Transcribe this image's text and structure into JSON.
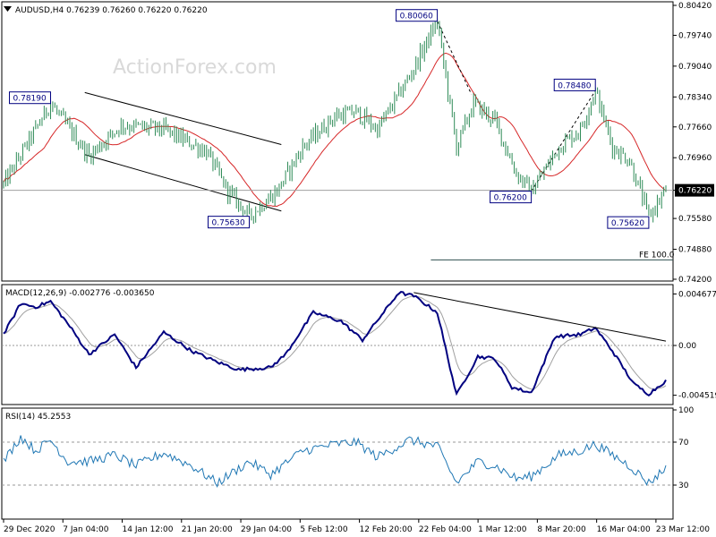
{
  "watermark": "ActionForex.com",
  "colors": {
    "candle": "#2e8b57",
    "ma": "#d62728",
    "macd": "#000080",
    "signal": "#a0a0a0",
    "rsi": "#1f77b4",
    "trendline": "#000000",
    "fe_line": "#2f4f4f",
    "price_line": "#a0a0a0",
    "label_border": "#000080"
  },
  "chart_data": [
    {
      "type": "candlestick",
      "title": "AUDUSD,H4  0.76239 0.76260 0.76220 0.76220",
      "yticks": [
        "0.80420",
        "0.79740",
        "0.79040",
        "0.78340",
        "0.77660",
        "0.76960",
        "0.76220",
        "0.75580",
        "0.74880",
        "0.74200"
      ],
      "ylim": [
        0.742,
        0.8042
      ],
      "current_price": "0.76220",
      "annotations": [
        {
          "text": "0.78190",
          "bar": 22,
          "value": 0.7819
        },
        {
          "text": "0.75630",
          "bar": 115,
          "value": 0.7563
        },
        {
          "text": "0.80060",
          "bar": 203,
          "value": 0.8006
        },
        {
          "text": "0.76200",
          "bar": 247,
          "value": 0.762
        },
        {
          "text": "0.78480",
          "bar": 277,
          "value": 0.7848
        },
        {
          "text": "0.75620",
          "bar": 302,
          "value": 0.7562
        }
      ],
      "fe_label": "FE 100.0",
      "fe_value": 0.7464,
      "bars": 310,
      "anchors": [
        [
          0,
          0.7635
        ],
        [
          22,
          0.7819
        ],
        [
          40,
          0.77
        ],
        [
          55,
          0.777
        ],
        [
          75,
          0.776
        ],
        [
          95,
          0.771
        ],
        [
          105,
          0.762
        ],
        [
          115,
          0.7563
        ],
        [
          128,
          0.762
        ],
        [
          140,
          0.772
        ],
        [
          155,
          0.779
        ],
        [
          165,
          0.78
        ],
        [
          175,
          0.776
        ],
        [
          190,
          0.788
        ],
        [
          203,
          0.8006
        ],
        [
          212,
          0.772
        ],
        [
          220,
          0.782
        ],
        [
          230,
          0.778
        ],
        [
          240,
          0.766
        ],
        [
          247,
          0.762
        ],
        [
          260,
          0.772
        ],
        [
          270,
          0.776
        ],
        [
          277,
          0.7848
        ],
        [
          285,
          0.772
        ],
        [
          293,
          0.769
        ],
        [
          302,
          0.7562
        ],
        [
          310,
          0.7622
        ]
      ],
      "channels": [
        {
          "from": [
            38,
            0.7844
          ],
          "to": [
            130,
            0.7726
          ]
        },
        {
          "from": [
            38,
            0.7703
          ],
          "to": [
            130,
            0.7575
          ]
        }
      ],
      "zigzag": [
        [
          203,
          0.8006
        ],
        [
          219,
          0.784
        ]
      ]
    },
    {
      "type": "line",
      "title": "MACD(12,26,9) -0.002776 -0.003650",
      "yticks": [
        "0.004677",
        "0.00",
        "-0.004519"
      ],
      "ylim": [
        -0.0052,
        0.0052
      ],
      "anchors": [
        [
          0,
          0.001
        ],
        [
          8,
          0.0038
        ],
        [
          15,
          0.0035
        ],
        [
          22,
          0.004
        ],
        [
          30,
          0.002
        ],
        [
          40,
          -0.0008
        ],
        [
          52,
          0.001
        ],
        [
          62,
          -0.002
        ],
        [
          75,
          0.0012
        ],
        [
          88,
          -0.0005
        ],
        [
          100,
          -0.0015
        ],
        [
          110,
          -0.0022
        ],
        [
          125,
          -0.002
        ],
        [
          132,
          -0.0008
        ],
        [
          145,
          0.003
        ],
        [
          158,
          0.0022
        ],
        [
          168,
          0.0005
        ],
        [
          185,
          0.0048
        ],
        [
          192,
          0.0045
        ],
        [
          203,
          0.003
        ],
        [
          212,
          -0.0045
        ],
        [
          222,
          -0.001
        ],
        [
          230,
          -0.0012
        ],
        [
          238,
          -0.0038
        ],
        [
          247,
          -0.0043
        ],
        [
          258,
          0.0008
        ],
        [
          270,
          0.001
        ],
        [
          277,
          0.0016
        ],
        [
          285,
          -0.0005
        ],
        [
          295,
          -0.0035
        ],
        [
          302,
          -0.0044
        ],
        [
          310,
          -0.0032
        ]
      ],
      "trendline": {
        "from": [
          192,
          0.0048
        ],
        "to": [
          310,
          0.0004
        ]
      }
    },
    {
      "type": "line",
      "title": "RSI(14) 45.2553",
      "yticks": [
        "100",
        "70",
        "30"
      ],
      "ylim": [
        0,
        100
      ],
      "levels": [
        70,
        30
      ],
      "anchors": [
        [
          0,
          52
        ],
        [
          8,
          75
        ],
        [
          15,
          62
        ],
        [
          22,
          72
        ],
        [
          30,
          52
        ],
        [
          40,
          52
        ],
        [
          52,
          58
        ],
        [
          62,
          48
        ],
        [
          75,
          60
        ],
        [
          88,
          48
        ],
        [
          100,
          32
        ],
        [
          115,
          52
        ],
        [
          125,
          40
        ],
        [
          140,
          62
        ],
        [
          155,
          68
        ],
        [
          165,
          70
        ],
        [
          175,
          56
        ],
        [
          190,
          72
        ],
        [
          203,
          66
        ],
        [
          212,
          32
        ],
        [
          222,
          52
        ],
        [
          230,
          48
        ],
        [
          240,
          36
        ],
        [
          247,
          38
        ],
        [
          260,
          58
        ],
        [
          270,
          62
        ],
        [
          277,
          68
        ],
        [
          285,
          58
        ],
        [
          293,
          48
        ],
        [
          302,
          32
        ],
        [
          310,
          46
        ]
      ]
    }
  ],
  "x_labels": [
    "29 Dec 2020",
    "7 Jan 04:00",
    "14 Jan 12:00",
    "21 Jan 20:00",
    "29 Jan 04:00",
    "5 Feb 12:00",
    "12 Feb 20:00",
    "22 Feb 04:00",
    "1 Mar 12:00",
    "8 Mar 20:00",
    "16 Mar 04:00",
    "23 Mar 12:00"
  ]
}
